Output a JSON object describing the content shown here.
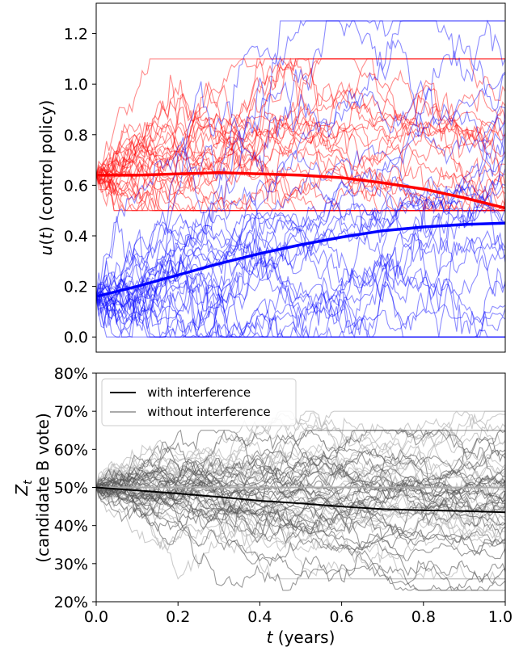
{
  "chart_data": [
    {
      "type": "line",
      "ylabel": "u(t) (control policy)",
      "xlim": [
        0,
        1.0
      ],
      "ylim": [
        -0.06,
        1.32
      ],
      "yticks": [
        "0.0",
        "0.2",
        "0.4",
        "0.6",
        "0.8",
        "1.0",
        "1.2"
      ],
      "grid": false,
      "legend": null,
      "colors": {
        "red": "#ff0000",
        "blue": "#0000ff"
      },
      "series": [
        {
          "color": "#ff0000",
          "role": "mean",
          "x": [
            0,
            0.1,
            0.2,
            0.3,
            0.4,
            0.5,
            0.6,
            0.7,
            0.8,
            0.9,
            1.0
          ],
          "y": [
            0.64,
            0.64,
            0.645,
            0.65,
            0.645,
            0.64,
            0.63,
            0.61,
            0.585,
            0.55,
            0.51
          ]
        },
        {
          "color": "#0000ff",
          "role": "mean",
          "x": [
            0,
            0.1,
            0.2,
            0.3,
            0.4,
            0.5,
            0.6,
            0.7,
            0.8,
            0.9,
            1.0
          ],
          "y": [
            0.16,
            0.2,
            0.245,
            0.29,
            0.33,
            0.365,
            0.395,
            0.42,
            0.435,
            0.445,
            0.45
          ]
        },
        {
          "color": "#ff0000",
          "role": "samples",
          "start": 0.64,
          "end": 0.51,
          "count": 30,
          "range": [
            0.5,
            1.1
          ]
        },
        {
          "color": "#0000ff",
          "role": "samples",
          "start": 0.16,
          "end": 0.45,
          "count": 30,
          "range": [
            0.0,
            1.25
          ]
        }
      ]
    },
    {
      "type": "line",
      "ylabel": "Z_t (candidate B vote)",
      "xlabel": "t (years)",
      "xlim": [
        0,
        1.0
      ],
      "xticks": [
        "0.0",
        "0.2",
        "0.4",
        "0.6",
        "0.8",
        "1.0"
      ],
      "ylim": [
        20,
        80
      ],
      "yticks": [
        "20%",
        "30%",
        "40%",
        "50%",
        "60%",
        "70%",
        "80%"
      ],
      "grid": false,
      "legend_position": "top-left",
      "series": [
        {
          "name": "with interference",
          "color": "#000000",
          "role": "mean",
          "x": [
            0,
            0.1,
            0.2,
            0.3,
            0.4,
            0.5,
            0.6,
            0.7,
            0.8,
            0.9,
            1.0
          ],
          "y": [
            50.0,
            49.2,
            48.4,
            47.5,
            46.5,
            45.8,
            45.0,
            44.3,
            44.0,
            43.8,
            43.5
          ]
        },
        {
          "name": "without interference",
          "color": "#aaaaaa",
          "role": "mean",
          "x": [
            0,
            0.1,
            0.2,
            0.3,
            0.4,
            0.5,
            0.6,
            0.7,
            0.8,
            0.9,
            1.0
          ],
          "y": [
            50.0,
            50.0,
            50.0,
            50.0,
            50.0,
            50.0,
            50.0,
            50.0,
            50.0,
            50.0,
            50.0
          ]
        },
        {
          "color": "#555555",
          "role": "samples",
          "start": 50,
          "end": 43.5,
          "count": 30,
          "range": [
            23,
            65
          ]
        },
        {
          "color": "#bbbbbb",
          "role": "samples",
          "start": 50,
          "end": 50,
          "count": 30,
          "range": [
            26,
            70
          ]
        }
      ]
    }
  ]
}
